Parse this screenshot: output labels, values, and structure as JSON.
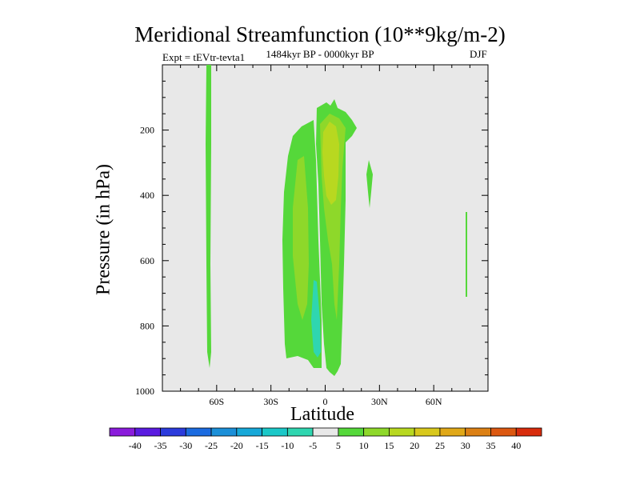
{
  "chart_data": {
    "type": "heatmap",
    "title": "Meridional Streamfunction (10**9kg/m-2)",
    "experiment_label": "Expt = tEVtr-tevta1",
    "period_label": "1484kyr BP - 0000kyr BP",
    "season_label": "DJF",
    "xlabel": "Latitude",
    "ylabel": "Pressure (in hPa)",
    "x_ticks": [
      "60S",
      "30S",
      "0",
      "30N",
      "60N"
    ],
    "x_tick_values": [
      -60,
      -30,
      0,
      30,
      60
    ],
    "xlim": [
      -90,
      90
    ],
    "y_ticks": [
      "200",
      "400",
      "600",
      "800",
      "1000"
    ],
    "y_tick_values": [
      200,
      400,
      600,
      800,
      1000
    ],
    "ylim": [
      0,
      1000
    ],
    "colorbar": {
      "levels": [
        "-40",
        "-35",
        "-30",
        "-25",
        "-20",
        "-15",
        "-10",
        "-5",
        "5",
        "10",
        "15",
        "20",
        "25",
        "30",
        "35",
        "40"
      ],
      "colors": [
        "#8a1bdb",
        "#5a1be0",
        "#2b3bdc",
        "#1b6be0",
        "#1b8fd8",
        "#16a8d8",
        "#1bc8c8",
        "#2fd6b0",
        "#e8e8e8",
        "#55d83a",
        "#8ed82a",
        "#b8d820",
        "#d8c81c",
        "#e0a818",
        "#dc8014",
        "#dc5810",
        "#d82c0c"
      ]
    },
    "contour_regions": [
      {
        "label": "band ~65S",
        "value_class": "5 to 10",
        "lat_range": [
          -66,
          -64
        ],
        "pressure_range": [
          0,
          920
        ]
      },
      {
        "label": "southern cell",
        "value_class": "5 to 10",
        "lat_range": [
          -22,
          5
        ],
        "pressure_range": [
          170,
          900
        ]
      },
      {
        "label": "equatorial cell",
        "value_class": "5 to 10",
        "lat_range": [
          -5,
          10
        ],
        "pressure_range": [
          110,
          960
        ]
      },
      {
        "label": "equatorial core",
        "value_class": "10 to 15",
        "lat_range": [
          -3,
          7
        ],
        "pressure_range": [
          140,
          780
        ]
      },
      {
        "label": "equatorial peak",
        "value_class": "15 to 20",
        "lat_range": [
          -2,
          5
        ],
        "pressure_range": [
          190,
          330
        ]
      },
      {
        "label": "negative cell",
        "value_class": "-10 to -5",
        "lat_range": [
          -8,
          -5
        ],
        "pressure_range": [
          660,
          900
        ]
      },
      {
        "label": "small cell ~24N",
        "value_class": "5 to 10",
        "lat_range": [
          23,
          25
        ],
        "pressure_range": [
          270,
          430
        ]
      },
      {
        "label": "small cell ~78N",
        "value_class": "5 to 10",
        "lat_range": [
          77,
          78
        ],
        "pressure_range": [
          450,
          710
        ]
      }
    ]
  }
}
